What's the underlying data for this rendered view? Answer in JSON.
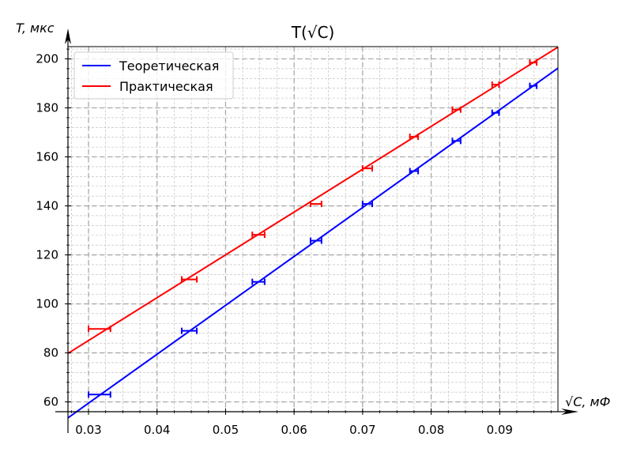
{
  "chart_data": {
    "type": "line",
    "title": "T(√C)",
    "ylabel": "T, мкс",
    "xlabel": "√C, мФ",
    "xlim": [
      0.027,
      0.0985
    ],
    "ylim": [
      56,
      205
    ],
    "x_major_ticks": [
      0.03,
      0.04,
      0.05,
      0.06,
      0.07,
      0.08,
      0.09
    ],
    "x_tick_labels": [
      "0.03",
      "0.04",
      "0.05",
      "0.06",
      "0.07",
      "0.08",
      "0.09"
    ],
    "y_major_ticks": [
      60,
      80,
      100,
      120,
      140,
      160,
      180,
      200
    ],
    "y_tick_labels": [
      "60",
      "80",
      "100",
      "120",
      "140",
      "160",
      "180",
      "200"
    ],
    "grid": true,
    "legend_position": "top-left",
    "series": [
      {
        "name": "Теоретическая",
        "color": "#0000ff",
        "line": {
          "x": [
            0.027,
            0.0985
          ],
          "y": [
            53.5,
            196.2
          ]
        },
        "points": [
          {
            "x": 0.0316,
            "y": 63.0,
            "xerr": 0.0016
          },
          {
            "x": 0.0447,
            "y": 89.0,
            "xerr": 0.0011
          },
          {
            "x": 0.0548,
            "y": 109.0,
            "xerr": 0.0009
          },
          {
            "x": 0.0632,
            "y": 125.8,
            "xerr": 0.0008
          },
          {
            "x": 0.0707,
            "y": 140.8,
            "xerr": 0.0007
          },
          {
            "x": 0.0775,
            "y": 154.2,
            "xerr": 0.0006
          },
          {
            "x": 0.0837,
            "y": 166.5,
            "xerr": 0.0006
          },
          {
            "x": 0.0894,
            "y": 178.0,
            "xerr": 0.0005
          },
          {
            "x": 0.0949,
            "y": 189.0,
            "xerr": 0.0005
          }
        ]
      },
      {
        "name": "Практическая",
        "color": "#ff0000",
        "line": {
          "x": [
            0.027,
            0.0985
          ],
          "y": [
            79.8,
            204.8
          ]
        },
        "points": [
          {
            "x": 0.0316,
            "y": 89.8,
            "xerr": 0.0016
          },
          {
            "x": 0.0447,
            "y": 110.0,
            "xerr": 0.0011
          },
          {
            "x": 0.0548,
            "y": 128.2,
            "xerr": 0.0009
          },
          {
            "x": 0.0632,
            "y": 140.8,
            "xerr": 0.0008
          },
          {
            "x": 0.0707,
            "y": 155.3,
            "xerr": 0.0007
          },
          {
            "x": 0.0775,
            "y": 168.2,
            "xerr": 0.0006
          },
          {
            "x": 0.0837,
            "y": 179.3,
            "xerr": 0.0006
          },
          {
            "x": 0.0894,
            "y": 189.5,
            "xerr": 0.0005
          },
          {
            "x": 0.0949,
            "y": 198.5,
            "xerr": 0.0005
          }
        ]
      }
    ]
  }
}
